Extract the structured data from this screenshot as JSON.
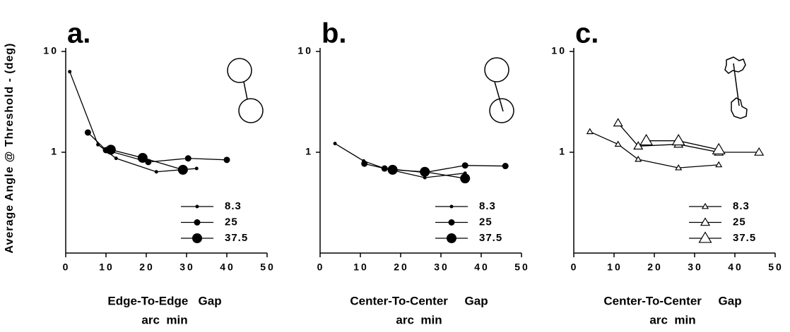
{
  "chart_data": [
    {
      "type": "line",
      "title": "a.",
      "ylabel": "Average Angle @ Threshold - (deg)",
      "xlabel": [
        "Edge-To-Edge   Gap",
        "arc  min"
      ],
      "log_y": true,
      "marker": "circle",
      "color": "#000000",
      "xlim": [
        0,
        50
      ],
      "xticks": [
        0,
        10,
        20,
        30,
        40,
        50
      ],
      "ylim": [
        0.1,
        10
      ],
      "yticks": [
        1,
        10
      ],
      "series": [
        {
          "name": "8.3",
          "x": [
            1,
            8,
            12.5,
            22.5,
            32.5
          ],
          "values": [
            6.3,
            1.19,
            0.87,
            0.64,
            0.69
          ]
        },
        {
          "name": "25",
          "x": [
            5.5,
            10,
            20.5,
            30.4,
            40
          ],
          "values": [
            1.57,
            1.05,
            0.8,
            0.87,
            0.84
          ]
        },
        {
          "name": "37.5",
          "x": [
            11.2,
            19.1,
            29.1
          ],
          "values": [
            1.06,
            0.88,
            0.67
          ]
        }
      ]
    },
    {
      "type": "line",
      "title": "b.",
      "xlabel": [
        "Center-To-Center     Gap",
        "arc  min"
      ],
      "log_y": true,
      "marker": "circle",
      "color": "#000000",
      "xlim": [
        0,
        50
      ],
      "xticks": [
        0,
        10,
        20,
        30,
        40,
        50
      ],
      "ylim": [
        0.1,
        10
      ],
      "yticks": [
        1,
        10
      ],
      "series": [
        {
          "name": "8.3",
          "x": [
            3.7,
            10.8,
            16,
            26,
            36
          ],
          "values": [
            1.22,
            0.82,
            0.69,
            0.56,
            0.62
          ]
        },
        {
          "name": "25",
          "x": [
            11,
            16,
            26,
            36,
            46
          ],
          "values": [
            0.77,
            0.69,
            0.63,
            0.74,
            0.73
          ]
        },
        {
          "name": "37.5",
          "x": [
            18,
            26,
            36
          ],
          "values": [
            0.67,
            0.64,
            0.55
          ]
        }
      ]
    },
    {
      "type": "line",
      "title": "c.",
      "xlabel": [
        "Center-To-Center     Gap",
        "arc  min"
      ],
      "log_y": true,
      "marker": "triangle-open",
      "color": "#000000",
      "xlim": [
        0,
        50
      ],
      "xticks": [
        0,
        10,
        20,
        30,
        40,
        50
      ],
      "ylim": [
        0.1,
        10
      ],
      "yticks": [
        1,
        10
      ],
      "series": [
        {
          "name": "8.3",
          "x": [
            4,
            11,
            16,
            26,
            36
          ],
          "values": [
            1.6,
            1.2,
            0.85,
            0.7,
            0.75
          ]
        },
        {
          "name": "25",
          "x": [
            11,
            16,
            26,
            36,
            46
          ],
          "values": [
            1.95,
            1.15,
            1.2,
            1.0,
            1.0
          ]
        },
        {
          "name": "37.5",
          "x": [
            18,
            26,
            36
          ],
          "values": [
            1.3,
            1.3,
            1.06
          ]
        }
      ]
    }
  ]
}
